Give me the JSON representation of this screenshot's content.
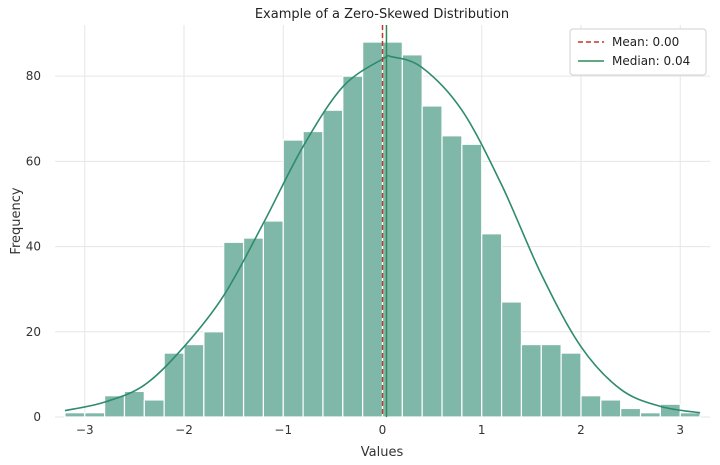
{
  "chart_data": {
    "type": "bar",
    "title": "Example of a Zero-Skewed Distribution",
    "xlabel": "Values",
    "ylabel": "Frequency",
    "xlim": [
      -3.3,
      3.3
    ],
    "ylim": [
      0,
      92
    ],
    "xticks": [
      -3,
      -2,
      -1,
      0,
      1,
      2,
      3
    ],
    "xtick_labels": [
      "−3",
      "−2",
      "−1",
      "0",
      "1",
      "2",
      "3"
    ],
    "yticks": [
      0,
      20,
      40,
      60,
      80
    ],
    "grid": true,
    "legend_placement": "top-right",
    "colors": {
      "bar_fill": "#7fb8a8",
      "bar_edge": "#ffffff",
      "kde_line": "#2e8b6e",
      "mean_line": "#c0392b",
      "median_line": "#2e8b57",
      "grid": "#e6e6e6"
    },
    "histogram": {
      "bin_edges": [
        -3.2,
        -3.0,
        -2.8,
        -2.6,
        -2.4,
        -2.2,
        -2.0,
        -1.8,
        -1.6,
        -1.4,
        -1.2,
        -1.0,
        -0.8,
        -0.6,
        -0.4,
        -0.2,
        0.0,
        0.2,
        0.4,
        0.6,
        0.8,
        1.0,
        1.2,
        1.4,
        1.6,
        1.8,
        2.0,
        2.2,
        2.4,
        2.6,
        2.8,
        3.0,
        3.2
      ],
      "counts": [
        1,
        1,
        5,
        6,
        4,
        15,
        17,
        20,
        41,
        42,
        46,
        65,
        67,
        72,
        80,
        88,
        88,
        85,
        73,
        66,
        64,
        43,
        27,
        17,
        17,
        15,
        5,
        4,
        2,
        1,
        3,
        1
      ]
    },
    "kde": {
      "x": [
        -3.2,
        -2.8,
        -2.4,
        -2.0,
        -1.6,
        -1.2,
        -0.8,
        -0.4,
        0.0,
        0.1,
        0.4,
        0.8,
        1.2,
        1.6,
        2.0,
        2.4,
        2.8,
        3.2
      ],
      "y": [
        1.5,
        3.5,
        7.5,
        16.5,
        28.5,
        45.5,
        63.5,
        77.5,
        84.0,
        84.5,
        82.0,
        72.0,
        54.5,
        33.5,
        16.5,
        6.5,
        2.5,
        1.0
      ]
    },
    "reference_lines": [
      {
        "name": "Mean: 0.00",
        "x": 0.0,
        "style": "dashed"
      },
      {
        "name": "Median: 0.04",
        "x": 0.04,
        "style": "solid"
      }
    ]
  }
}
